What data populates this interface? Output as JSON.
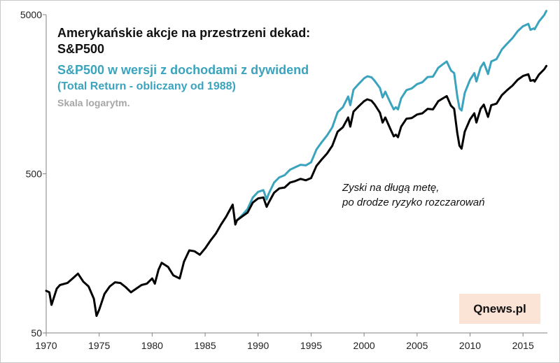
{
  "chart_data": {
    "type": "line",
    "title": "Amerykańskie akcje na przestrzeni dekad:",
    "subtitle": "S&P500",
    "series_label": "S&P500 w wersji z dochodami z dywidend",
    "series_note": "(Total Return - obliczany od 1988)",
    "scale_note": "Skala logarytm.",
    "annotation": [
      "Zyski na długą metę,",
      "po drodze ryzyko rozczarowań"
    ],
    "source": "Qnews.pl",
    "yscale": "log",
    "ylim": [
      50,
      5000
    ],
    "xlim": [
      1970,
      2017.3
    ],
    "xticks": [
      "1970",
      "1975",
      "1980",
      "1985",
      "1990",
      "1995",
      "2000",
      "2005",
      "2010",
      "2015"
    ],
    "yticks": [
      "5000",
      "500",
      "50"
    ],
    "colors": {
      "sp500": "#000000",
      "total_return": "#3aa3bd"
    },
    "series": [
      {
        "name": "S&P500",
        "x": [
          1970.0,
          1970.3,
          1970.5,
          1971.0,
          1971.3,
          1972.0,
          1972.5,
          1973.0,
          1973.5,
          1974.0,
          1974.5,
          1974.75,
          1975.0,
          1975.5,
          1976.0,
          1976.5,
          1977.0,
          1977.5,
          1978.0,
          1978.5,
          1979.0,
          1979.5,
          1980.0,
          1980.25,
          1980.6,
          1980.9,
          1981.5,
          1982.0,
          1982.6,
          1983.0,
          1983.5,
          1984.0,
          1984.5,
          1985.0,
          1985.5,
          1986.0,
          1986.5,
          1987.0,
          1987.6,
          1987.85,
          1988.0,
          1988.5,
          1989.0,
          1989.5,
          1990.0,
          1990.5,
          1990.8,
          1991.0,
          1991.5,
          1992.0,
          1992.5,
          1993.0,
          1993.5,
          1994.0,
          1994.5,
          1995.0,
          1995.5,
          1996.0,
          1996.5,
          1997.0,
          1997.5,
          1998.0,
          1998.5,
          1998.7,
          1999.0,
          1999.5,
          2000.0,
          2000.3,
          2000.7,
          2001.0,
          2001.5,
          2001.75,
          2002.0,
          2002.5,
          2002.8,
          2003.0,
          2003.2,
          2003.5,
          2004.0,
          2004.5,
          2005.0,
          2005.5,
          2006.0,
          2006.5,
          2007.0,
          2007.5,
          2007.8,
          2008.2,
          2008.5,
          2008.8,
          2009.0,
          2009.2,
          2009.5,
          2010.0,
          2010.4,
          2010.6,
          2011.0,
          2011.3,
          2011.7,
          2012.0,
          2012.5,
          2013.0,
          2013.5,
          2014.0,
          2014.5,
          2015.0,
          2015.5,
          2015.7,
          2016.0,
          2016.1,
          2016.5,
          2017.0,
          2017.2
        ],
        "values": [
          92,
          90,
          75,
          95,
          100,
          103,
          110,
          118,
          105,
          98,
          82,
          64,
          70,
          88,
          98,
          104,
          103,
          97,
          90,
          95,
          100,
          102,
          110,
          102,
          125,
          138,
          130,
          115,
          110,
          140,
          165,
          163,
          155,
          170,
          190,
          210,
          240,
          270,
          320,
          240,
          255,
          270,
          285,
          330,
          350,
          355,
          310,
          330,
          380,
          405,
          410,
          440,
          450,
          465,
          455,
          470,
          560,
          615,
          670,
          750,
          920,
          980,
          1130,
          990,
          1230,
          1330,
          1430,
          1470,
          1440,
          1360,
          1210,
          1050,
          1130,
          950,
          860,
          880,
          850,
          990,
          1110,
          1120,
          1180,
          1200,
          1280,
          1270,
          1430,
          1500,
          1540,
          1340,
          1280,
          900,
          750,
          720,
          920,
          1100,
          1200,
          1050,
          1280,
          1360,
          1140,
          1350,
          1380,
          1560,
          1680,
          1790,
          1950,
          2060,
          2110,
          1920,
          1940,
          1900,
          2100,
          2270,
          2380
        ]
      },
      {
        "name": "S&P500 Total Return",
        "x": [
          1988.0,
          1988.5,
          1989.0,
          1989.5,
          1990.0,
          1990.5,
          1990.8,
          1991.0,
          1991.5,
          1992.0,
          1992.5,
          1993.0,
          1993.5,
          1994.0,
          1994.5,
          1995.0,
          1995.5,
          1996.0,
          1996.5,
          1997.0,
          1997.5,
          1998.0,
          1998.5,
          1998.7,
          1999.0,
          1999.5,
          2000.0,
          2000.3,
          2000.7,
          2001.0,
          2001.5,
          2001.75,
          2002.0,
          2002.5,
          2002.8,
          2003.0,
          2003.2,
          2003.5,
          2004.0,
          2004.5,
          2005.0,
          2005.5,
          2006.0,
          2006.5,
          2007.0,
          2007.5,
          2007.8,
          2008.2,
          2008.5,
          2008.8,
          2009.0,
          2009.2,
          2009.5,
          2010.0,
          2010.4,
          2010.6,
          2011.0,
          2011.3,
          2011.7,
          2012.0,
          2012.5,
          2013.0,
          2013.5,
          2014.0,
          2014.5,
          2015.0,
          2015.5,
          2015.7,
          2016.0,
          2016.1,
          2016.5,
          2017.0,
          2017.2
        ],
        "values": [
          255,
          275,
          300,
          355,
          385,
          395,
          345,
          375,
          440,
          475,
          490,
          530,
          550,
          570,
          565,
          590,
          710,
          790,
          870,
          980,
          1220,
          1310,
          1530,
          1350,
          1690,
          1840,
          1990,
          2050,
          2020,
          1920,
          1730,
          1510,
          1640,
          1390,
          1270,
          1310,
          1270,
          1490,
          1680,
          1720,
          1830,
          1880,
          2030,
          2040,
          2320,
          2460,
          2540,
          2230,
          2150,
          1530,
          1290,
          1250,
          1610,
          1950,
          2150,
          1900,
          2330,
          2500,
          2120,
          2540,
          2630,
          3020,
          3290,
          3560,
          3940,
          4230,
          4380,
          4020,
          4100,
          4050,
          4530,
          4980,
          5280
        ]
      }
    ]
  }
}
